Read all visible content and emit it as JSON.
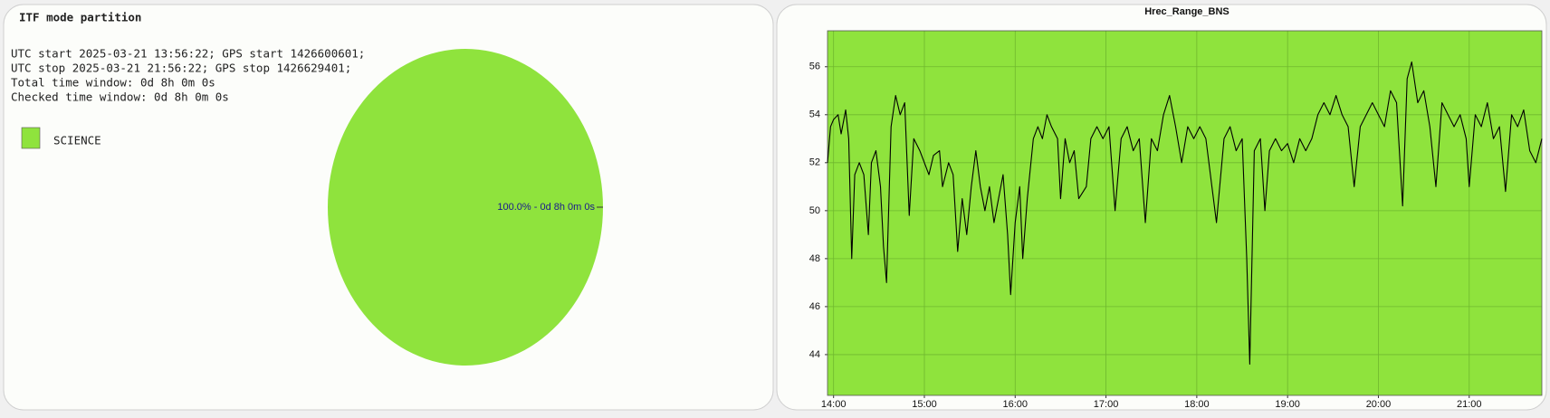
{
  "chart_data": [
    {
      "type": "pie",
      "title": "ITF mode partition",
      "info_lines": [
        "UTC start 2025-03-21 13:56:22; GPS start 1426600601;",
        "UTC stop 2025-03-21 21:56:22; GPS stop 1426629401;",
        "Total time window: 0d 8h 0m 0s",
        "Checked time window: 0d 8h 0m 0s"
      ],
      "categories": [
        "SCIENCE"
      ],
      "values": [
        100
      ],
      "value_labels": [
        "100.0% - 0d 8h 0m 0s"
      ],
      "colors": [
        "#8fe33d"
      ]
    },
    {
      "type": "line",
      "title": "Hrec_Range_BNS",
      "x": [
        "13:56",
        "13:58",
        "14:00",
        "14:03",
        "14:05",
        "14:08",
        "14:10",
        "14:12",
        "14:14",
        "14:17",
        "14:20",
        "14:23",
        "14:25",
        "14:28",
        "14:31",
        "14:33",
        "14:35",
        "14:38",
        "14:41",
        "14:44",
        "14:47",
        "14:50",
        "14:53",
        "14:57",
        "15:00",
        "15:03",
        "15:06",
        "15:10",
        "15:12",
        "15:16",
        "15:19",
        "15:22",
        "15:25",
        "15:28",
        "15:31",
        "15:34",
        "15:37",
        "15:40",
        "15:43",
        "15:46",
        "15:49",
        "15:52",
        "15:55",
        "15:57",
        "16:00",
        "16:03",
        "16:05",
        "16:08",
        "16:12",
        "16:15",
        "16:18",
        "16:21",
        "16:24",
        "16:28",
        "16:30",
        "16:33",
        "16:36",
        "16:39",
        "16:42",
        "16:47",
        "16:50",
        "16:54",
        "16:58",
        "17:02",
        "17:06",
        "17:10",
        "17:14",
        "17:18",
        "17:22",
        "17:26",
        "17:30",
        "17:34",
        "17:38",
        "17:42",
        "17:46",
        "17:50",
        "17:54",
        "17:58",
        "18:02",
        "18:06",
        "18:10",
        "18:13",
        "18:18",
        "18:22",
        "18:26",
        "18:30",
        "18:33",
        "18:35",
        "18:38",
        "18:42",
        "18:45",
        "18:48",
        "18:52",
        "18:56",
        "19:00",
        "19:04",
        "19:08",
        "19:12",
        "19:16",
        "19:20",
        "19:24",
        "19:28",
        "19:32",
        "19:36",
        "19:40",
        "19:44",
        "19:48",
        "19:52",
        "19:56",
        "20:00",
        "20:04",
        "20:08",
        "20:12",
        "20:16",
        "20:19",
        "20:22",
        "20:26",
        "20:30",
        "20:34",
        "20:38",
        "20:42",
        "20:46",
        "20:50",
        "20:54",
        "20:58",
        "21:00",
        "21:04",
        "21:08",
        "21:12",
        "21:16",
        "21:20",
        "21:24",
        "21:28",
        "21:32",
        "21:36",
        "21:40",
        "21:44",
        "21:48"
      ],
      "series": [
        {
          "color": "#000000",
          "values": [
            52.0,
            53.5,
            53.8,
            54.0,
            53.2,
            54.2,
            53.0,
            48.0,
            51.5,
            52.0,
            51.5,
            49.0,
            52.0,
            52.5,
            51.0,
            48.5,
            47.0,
            53.5,
            54.8,
            54.0,
            54.5,
            49.8,
            53.0,
            52.5,
            52.0,
            51.5,
            52.3,
            52.5,
            51.0,
            52.0,
            51.5,
            48.3,
            50.5,
            49.0,
            51.0,
            52.5,
            51.0,
            50.0,
            51.0,
            49.5,
            50.5,
            51.5,
            49.0,
            46.5,
            49.5,
            51.0,
            48.0,
            50.5,
            53.0,
            53.5,
            53.0,
            54.0,
            53.5,
            53.0,
            50.5,
            53.0,
            52.0,
            52.5,
            50.5,
            51.0,
            53.0,
            53.5,
            53.0,
            53.5,
            50.0,
            53.0,
            53.5,
            52.5,
            53.0,
            49.5,
            53.0,
            52.5,
            54.0,
            54.8,
            53.5,
            52.0,
            53.5,
            53.0,
            53.5,
            53.0,
            51.0,
            49.5,
            53.0,
            53.5,
            52.5,
            53.0,
            48.0,
            43.6,
            52.5,
            53.0,
            50.0,
            52.5,
            53.0,
            52.5,
            52.8,
            52.0,
            53.0,
            52.5,
            53.0,
            54.0,
            54.5,
            54.0,
            54.8,
            54.0,
            53.5,
            51.0,
            53.5,
            54.0,
            54.5,
            54.0,
            53.5,
            55.0,
            54.5,
            50.2,
            55.5,
            56.2,
            54.5,
            55.0,
            53.5,
            51.0,
            54.5,
            54.0,
            53.5,
            54.0,
            53.0,
            51.0,
            54.0,
            53.5,
            54.5,
            53.0,
            53.5,
            50.8,
            54.0,
            53.5,
            54.2,
            52.5,
            52.0,
            53.0
          ]
        }
      ],
      "xlim": [
        "13:56",
        "21:48"
      ],
      "xticks": [
        "14:00",
        "15:00",
        "16:00",
        "17:00",
        "18:00",
        "19:00",
        "20:00",
        "21:00"
      ],
      "ylim": [
        42.3,
        57.5
      ],
      "yticks": [
        44,
        46,
        48,
        50,
        52,
        54,
        56
      ],
      "grid": true,
      "background": "#8fe33d"
    }
  ]
}
